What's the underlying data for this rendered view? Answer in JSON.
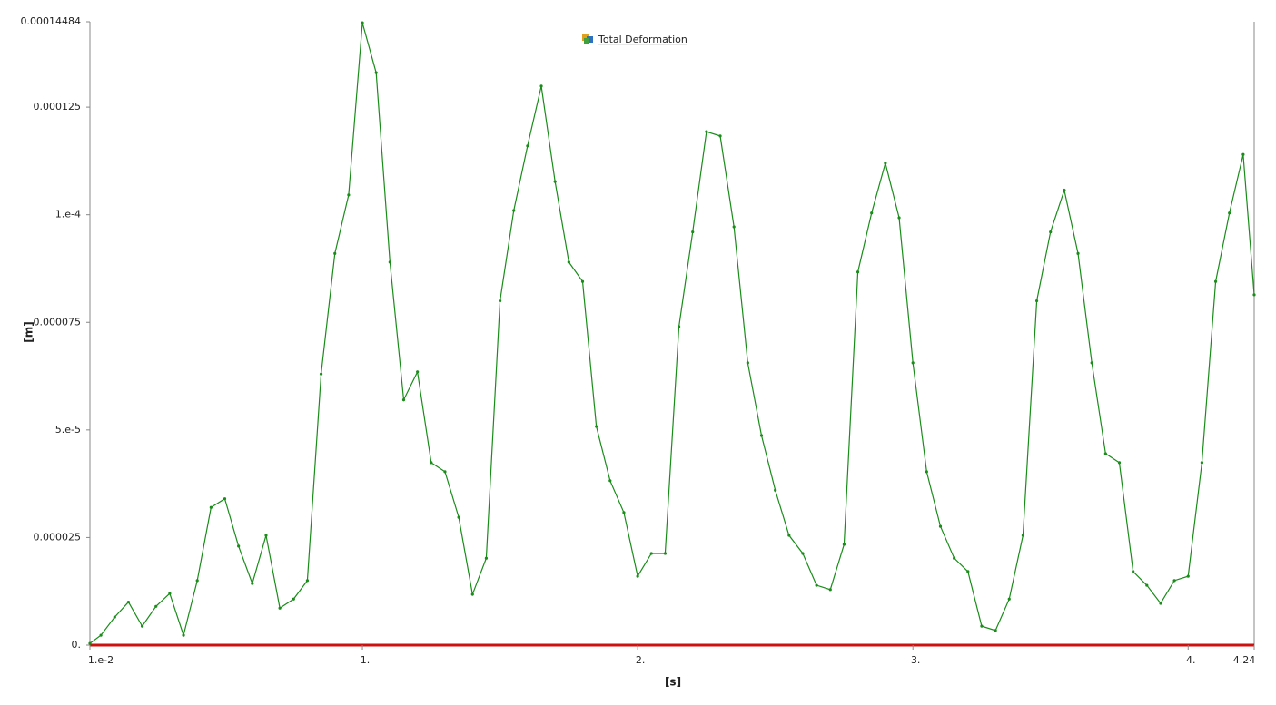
{
  "chart_data": {
    "type": "line",
    "legend": "Total Deformation",
    "xlabel": "[s]",
    "ylabel": "[m]",
    "xlim": [
      0.01,
      4.24
    ],
    "ylim": [
      0,
      0.00014484
    ],
    "xticks": [
      {
        "value": 0.01,
        "label": "1.e-2"
      },
      {
        "value": 1,
        "label": "1."
      },
      {
        "value": 2,
        "label": "2."
      },
      {
        "value": 3,
        "label": "3."
      },
      {
        "value": 4,
        "label": "4."
      },
      4.24
    ],
    "yticks": [
      {
        "value": 0,
        "label": "0."
      },
      2.5e-05,
      {
        "value": 5e-05,
        "label": "5.e-5"
      },
      7.5e-05,
      {
        "value": 0.0001,
        "label": "1.e-4"
      },
      0.000125,
      0.00014484
    ],
    "x": [
      0.01,
      0.05,
      0.1,
      0.15,
      0.2,
      0.25,
      0.3,
      0.35,
      0.4,
      0.45,
      0.5,
      0.55,
      0.6,
      0.65,
      0.7,
      0.75,
      0.8,
      0.85,
      0.9,
      0.95,
      1.0,
      1.05,
      1.1,
      1.15,
      1.2,
      1.25,
      1.3,
      1.35,
      1.4,
      1.45,
      1.5,
      1.55,
      1.6,
      1.65,
      1.7,
      1.75,
      1.8,
      1.85,
      1.9,
      1.95,
      2.0,
      2.05,
      2.1,
      2.15,
      2.2,
      2.25,
      2.3,
      2.35,
      2.4,
      2.45,
      2.5,
      2.55,
      2.6,
      2.65,
      2.7,
      2.75,
      2.8,
      2.85,
      2.9,
      2.95,
      3.0,
      3.05,
      3.1,
      3.15,
      3.2,
      3.25,
      3.3,
      3.35,
      3.4,
      3.45,
      3.5,
      3.55,
      3.6,
      3.65,
      3.7,
      3.75,
      3.8,
      3.85,
      3.9,
      3.95,
      4.0,
      4.05,
      4.1,
      4.15,
      4.2,
      4.24
    ],
    "series": [
      {
        "name": "Total Deformation",
        "color": "#1a8c1a",
        "values": [
          4e-07,
          2.3e-06,
          6.5e-06,
          1e-05,
          4.4e-06,
          9e-06,
          1.2e-05,
          2.3e-06,
          1.5e-05,
          3.2e-05,
          3.4e-05,
          2.3e-05,
          1.43e-05,
          2.55e-05,
          8.6e-06,
          1.07e-05,
          1.5e-05,
          6.3e-05,
          9.1e-05,
          0.0001046,
          0.0001446,
          0.000133,
          8.9e-05,
          5.7e-05,
          6.35e-05,
          4.24e-05,
          4.03e-05,
          2.97e-05,
          1.18e-05,
          2.02e-05,
          8e-05,
          0.000101,
          0.000116,
          0.0001299,
          0.0001077,
          8.9e-05,
          8.45e-05,
          5.08e-05,
          3.82e-05,
          3.08e-05,
          1.6e-05,
          2.13e-05,
          2.13e-05,
          7.4e-05,
          9.6e-05,
          0.0001193,
          0.0001183,
          9.72e-05,
          6.56e-05,
          4.87e-05,
          3.6e-05,
          2.55e-05,
          2.13e-05,
          1.39e-05,
          1.29e-05,
          2.34e-05,
          8.67e-05,
          0.0001004,
          0.000112,
          9.93e-05,
          6.56e-05,
          4.03e-05,
          2.76e-05,
          2.02e-05,
          1.71e-05,
          4.4e-06,
          3.4e-06,
          1.07e-05,
          2.55e-05,
          8e-05,
          9.6e-05,
          0.0001057,
          9.1e-05,
          6.56e-05,
          4.45e-05,
          4.24e-05,
          1.71e-05,
          1.39e-05,
          9.7e-06,
          1.5e-05,
          1.6e-05,
          4.24e-05,
          8.45e-05,
          0.0001004,
          0.000114,
          8.14e-05
        ]
      }
    ]
  }
}
